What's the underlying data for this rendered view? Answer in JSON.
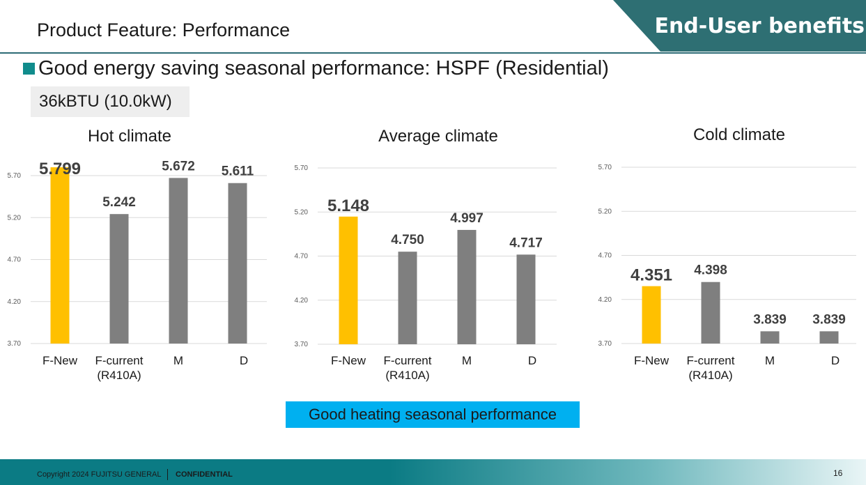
{
  "header": {
    "title": "Product Feature: Performance",
    "banner": "End-User benefits"
  },
  "section": {
    "heading": "Good energy saving seasonal performance: HSPF (Residential)",
    "capacity": "36kBTU (10.0kW)"
  },
  "colors": {
    "highlight": "#FFC000",
    "bar": "#7F7F7F",
    "banner": "#2E6F73",
    "callout": "#00B0F0"
  },
  "chart_data": [
    {
      "type": "bar",
      "title": "Hot climate",
      "categories": [
        "F-New",
        "F-current\n(R410A)",
        "M",
        "D"
      ],
      "values": [
        5.799,
        5.242,
        5.672,
        5.611
      ],
      "labels": [
        "5.799",
        "5.242",
        "5.672",
        "5.611"
      ],
      "yticks": [
        "3.70",
        "4.20",
        "4.70",
        "5.20",
        "5.70"
      ],
      "ylim": [
        3.7,
        5.7
      ],
      "highlight_index": 0
    },
    {
      "type": "bar",
      "title": "Average climate",
      "categories": [
        "F-New",
        "F-current\n(R410A)",
        "M",
        "D"
      ],
      "values": [
        5.148,
        4.75,
        4.997,
        4.717
      ],
      "labels": [
        "5.148",
        "4.750",
        "4.997",
        "4.717"
      ],
      "yticks": [
        "3.70",
        "4.20",
        "4.70",
        "5.20",
        "5.70"
      ],
      "ylim": [
        3.7,
        5.7
      ],
      "highlight_index": 0
    },
    {
      "type": "bar",
      "title": "Cold climate",
      "categories": [
        "F-New",
        "F-current\n(R410A)",
        "M",
        "D"
      ],
      "values": [
        4.351,
        4.398,
        3.839,
        3.839
      ],
      "labels": [
        "4.351",
        "4.398",
        "3.839",
        "3.839"
      ],
      "yticks": [
        "3.70",
        "4.20",
        "4.70",
        "5.20",
        "5.70"
      ],
      "ylim": [
        3.7,
        5.7
      ],
      "highlight_index": 0
    }
  ],
  "callout": "Good heating seasonal performance",
  "footer": {
    "copyright": "Copyright 2024 FUJITSU GENERAL",
    "confidential": "CONFIDENTIAL",
    "page_number": "16"
  }
}
